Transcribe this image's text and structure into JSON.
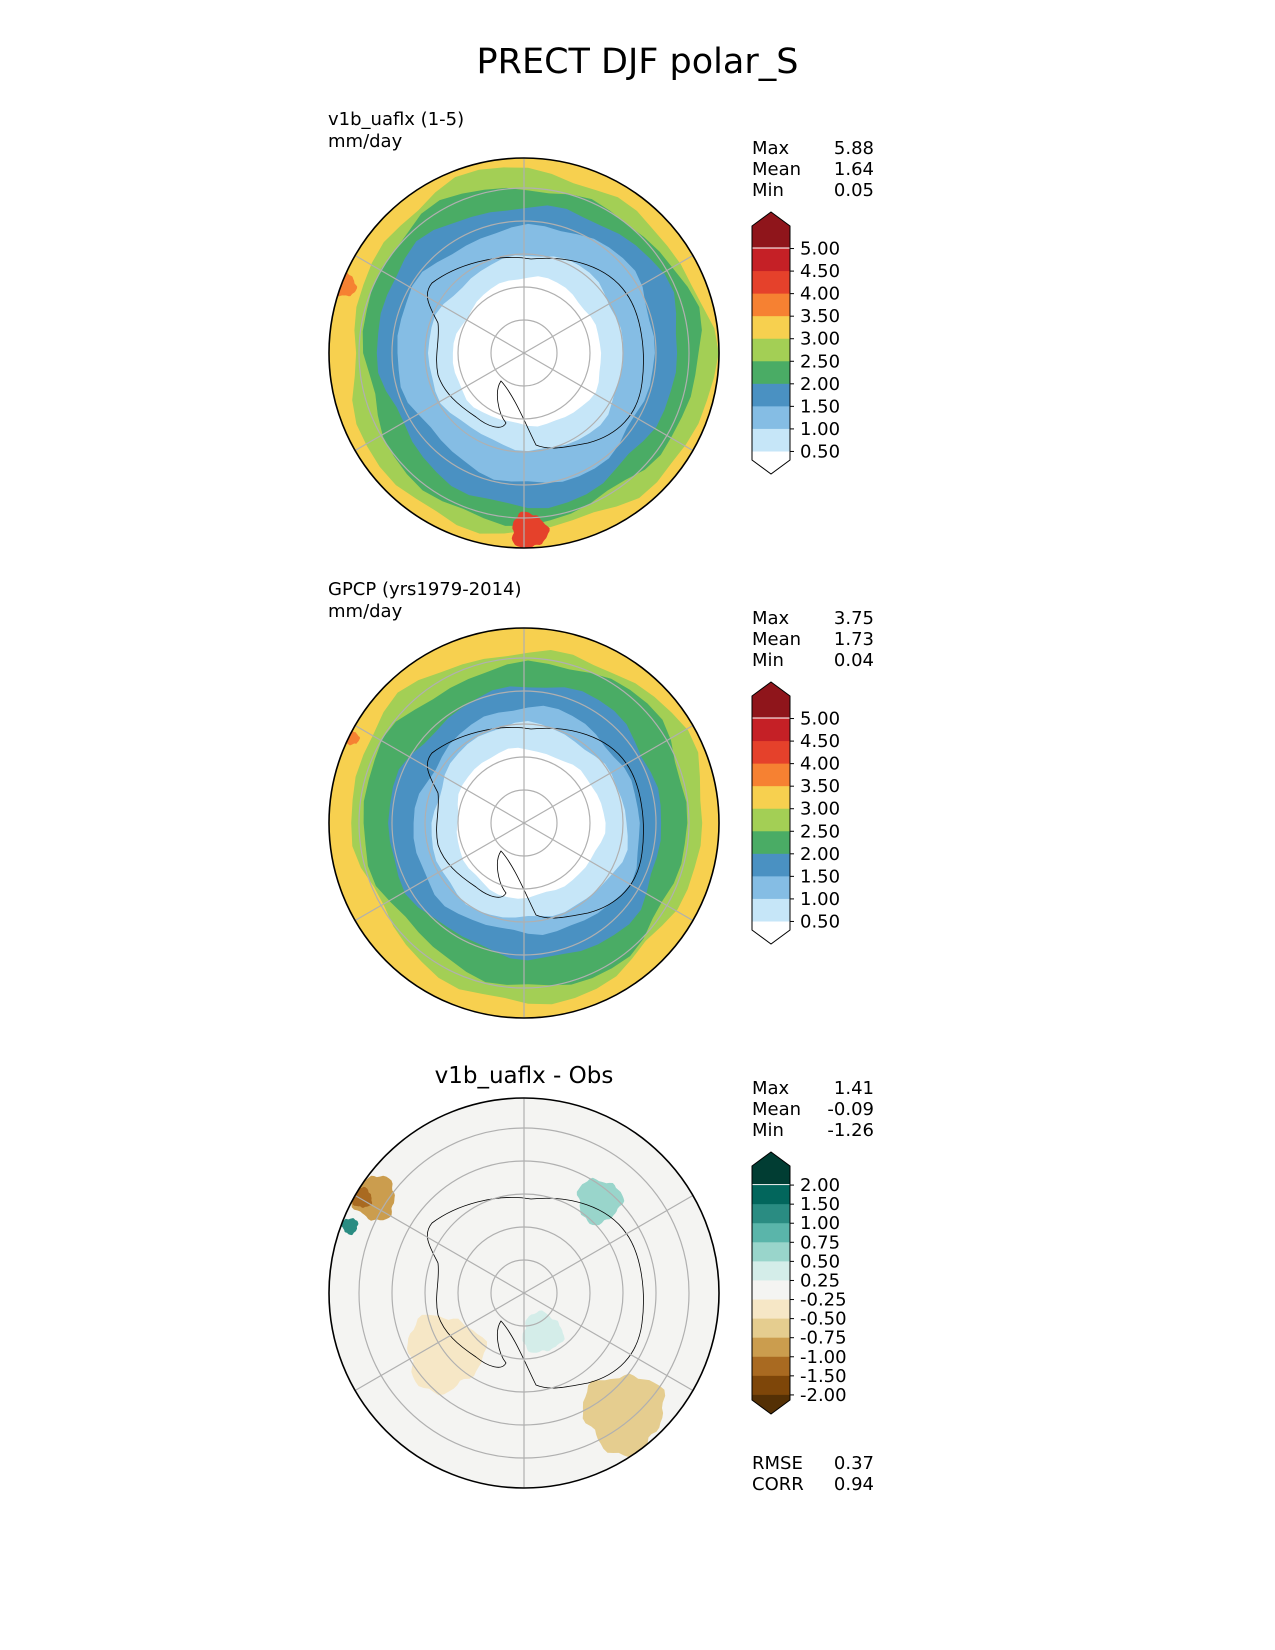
{
  "title": "PRECT DJF polar_S",
  "panels": [
    {
      "name": "v1b_uaflx (1-5)",
      "units": "mm/day",
      "stats": [
        {
          "label": "Max",
          "value": "5.88"
        },
        {
          "label": "Mean",
          "value": "1.64"
        },
        {
          "label": "Min",
          "value": "0.05"
        }
      ],
      "colorbar": {
        "ticks": [
          "5.00",
          "4.50",
          "4.00",
          "3.50",
          "3.00",
          "2.50",
          "2.00",
          "1.50",
          "1.00",
          "0.50"
        ],
        "colors": [
          "#8f151b",
          "#c52026",
          "#e5412b",
          "#f68132",
          "#f7d04f",
          "#a3cf55",
          "#4aac65",
          "#4a91c2",
          "#85bde4",
          "#c6e6f8",
          "#ffffff"
        ]
      }
    },
    {
      "name": "GPCP (yrs1979-2014)",
      "units": "mm/day",
      "stats": [
        {
          "label": "Max",
          "value": "3.75"
        },
        {
          "label": "Mean",
          "value": "1.73"
        },
        {
          "label": "Min",
          "value": "0.04"
        }
      ],
      "colorbar": {
        "ticks": [
          "5.00",
          "4.50",
          "4.00",
          "3.50",
          "3.00",
          "2.50",
          "2.00",
          "1.50",
          "1.00",
          "0.50"
        ],
        "colors": [
          "#8f151b",
          "#c52026",
          "#e5412b",
          "#f68132",
          "#f7d04f",
          "#a3cf55",
          "#4aac65",
          "#4a91c2",
          "#85bde4",
          "#c6e6f8",
          "#ffffff"
        ]
      }
    },
    {
      "title": "v1b_uaflx - Obs",
      "stats": [
        {
          "label": "Max",
          "value": "1.41"
        },
        {
          "label": "Mean",
          "value": "-0.09"
        },
        {
          "label": "Min",
          "value": "-1.26"
        }
      ],
      "metrics": [
        {
          "label": "RMSE",
          "value": "0.37"
        },
        {
          "label": "CORR",
          "value": "0.94"
        }
      ],
      "colorbar": {
        "ticks": [
          "2.00",
          "1.50",
          "1.00",
          "0.75",
          "0.50",
          "0.25",
          "-0.25",
          "-0.50",
          "-0.75",
          "-1.00",
          "-1.50",
          "-2.00"
        ],
        "colors": [
          "#013d33",
          "#02665c",
          "#2a8c82",
          "#5ab5aa",
          "#99d5cb",
          "#d4ede9",
          "#f4f4f2",
          "#f6e7c6",
          "#e5cd8f",
          "#cb9d4e",
          "#a96a21",
          "#7e4609",
          "#543005"
        ]
      }
    }
  ],
  "chart_data": [
    {
      "type": "heatmap",
      "projection": "south polar stereographic",
      "name": "v1b_uaflx (1-5)",
      "units": "mm/day",
      "levels": [
        0.5,
        1.0,
        1.5,
        2.0,
        2.5,
        3.0,
        3.5,
        4.0,
        4.5,
        5.0
      ],
      "stats": {
        "max": 5.88,
        "mean": 1.64,
        "min": 0.05
      },
      "field_bands": [
        {
          "value": 3.25,
          "color": "#f7d04f"
        },
        {
          "value": 2.75,
          "color": "#a3cf55"
        },
        {
          "value": 2.25,
          "color": "#4aac65"
        },
        {
          "value": 1.75,
          "color": "#4a91c2"
        },
        {
          "value": 1.25,
          "color": "#85bde4"
        },
        {
          "value": 0.75,
          "color": "#c6e6f8"
        },
        {
          "value": 0.25,
          "color": "#ffffff"
        }
      ],
      "hotspots": [
        {
          "value": 4.25,
          "color": "#f68132"
        },
        {
          "value": 4.75,
          "color": "#e5412b"
        }
      ]
    },
    {
      "type": "heatmap",
      "projection": "south polar stereographic",
      "name": "GPCP (yrs1979-2014)",
      "units": "mm/day",
      "levels": [
        0.5,
        1.0,
        1.5,
        2.0,
        2.5,
        3.0,
        3.5,
        4.0,
        4.5,
        5.0
      ],
      "stats": {
        "max": 3.75,
        "mean": 1.73,
        "min": 0.04
      },
      "field_bands": [
        {
          "value": 3.25,
          "color": "#f7d04f"
        },
        {
          "value": 2.75,
          "color": "#a3cf55"
        },
        {
          "value": 2.25,
          "color": "#4aac65"
        },
        {
          "value": 1.75,
          "color": "#4a91c2"
        },
        {
          "value": 1.25,
          "color": "#85bde4"
        },
        {
          "value": 0.75,
          "color": "#c6e6f8"
        },
        {
          "value": 0.25,
          "color": "#ffffff"
        }
      ],
      "hotspots": [
        {
          "value": 3.75,
          "color": "#f68132"
        }
      ]
    },
    {
      "type": "heatmap",
      "projection": "south polar stereographic",
      "name": "v1b_uaflx - Obs",
      "levels": [
        -2.0,
        -1.5,
        -1.0,
        -0.75,
        -0.5,
        -0.25,
        0.25,
        0.5,
        0.75,
        1.0,
        1.5,
        2.0
      ],
      "stats": {
        "max": 1.41,
        "mean": -0.09,
        "min": -1.26
      },
      "metrics": {
        "rmse": 0.37,
        "corr": 0.94
      },
      "field_bands": [
        {
          "value": 0.0,
          "color": "#f4f4f2"
        }
      ],
      "hotspots": [
        {
          "value": -0.375,
          "color": "#f6e7c6"
        },
        {
          "value": -0.625,
          "color": "#e5cd8f"
        },
        {
          "value": -0.875,
          "color": "#cb9d4e"
        },
        {
          "value": -1.25,
          "color": "#a96a21"
        },
        {
          "value": 0.375,
          "color": "#d4ede9"
        },
        {
          "value": 0.625,
          "color": "#99d5cb"
        },
        {
          "value": 1.25,
          "color": "#2a8c82"
        }
      ]
    }
  ]
}
